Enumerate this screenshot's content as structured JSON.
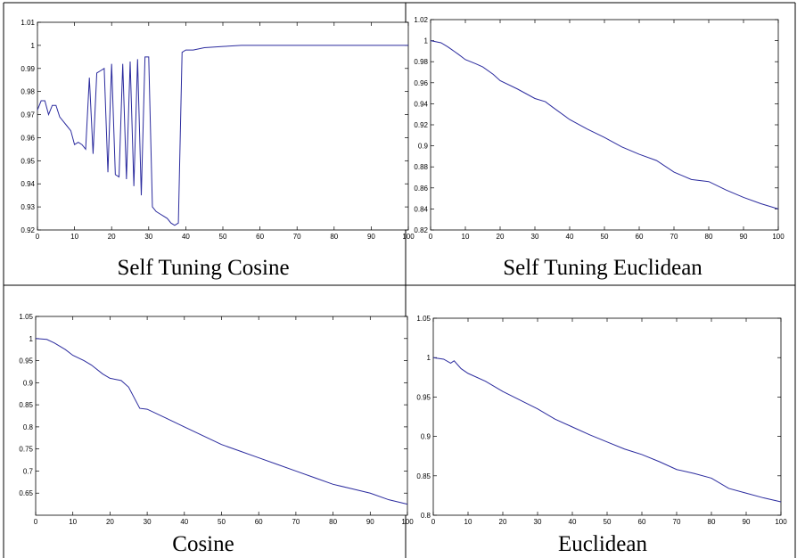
{
  "chart_data": [
    {
      "type": "line",
      "title": "Self Tuning Cosine",
      "color": "#2b2b9e",
      "x": [
        0,
        1,
        2,
        3,
        4,
        5,
        6,
        7,
        8,
        9,
        10,
        11,
        12,
        13,
        14,
        15,
        16,
        17,
        18,
        19,
        20,
        21,
        22,
        23,
        24,
        25,
        26,
        27,
        28,
        29,
        30,
        31,
        32,
        33,
        34,
        35,
        36,
        37,
        38,
        39,
        40,
        42,
        45,
        50,
        55,
        60,
        100
      ],
      "values": [
        0.972,
        0.976,
        0.976,
        0.97,
        0.974,
        0.974,
        0.969,
        0.967,
        0.965,
        0.963,
        0.957,
        0.958,
        0.957,
        0.955,
        0.986,
        0.953,
        0.988,
        0.989,
        0.99,
        0.945,
        0.992,
        0.944,
        0.943,
        0.992,
        0.942,
        0.993,
        0.939,
        0.994,
        0.935,
        0.995,
        0.995,
        0.93,
        0.928,
        0.927,
        0.926,
        0.925,
        0.923,
        0.922,
        0.923,
        0.997,
        0.998,
        0.998,
        0.999,
        0.9995,
        1,
        1,
        1
      ],
      "xlim": [
        0,
        100
      ],
      "xticks": [
        0,
        10,
        20,
        30,
        40,
        50,
        60,
        70,
        80,
        90,
        100
      ],
      "ylim": [
        0.92,
        1.01
      ],
      "yticks": [
        0.92,
        0.93,
        0.94,
        0.95,
        0.96,
        0.97,
        0.98,
        0.99,
        1,
        1.01
      ]
    },
    {
      "type": "line",
      "title": "Self Tuning Euclidean",
      "color": "#2b2b9e",
      "x": [
        0,
        3,
        5,
        8,
        10,
        13,
        15,
        18,
        20,
        25,
        30,
        33,
        35,
        40,
        45,
        50,
        55,
        60,
        65,
        70,
        75,
        80,
        85,
        90,
        95,
        100
      ],
      "values": [
        1.0,
        0.998,
        0.994,
        0.987,
        0.982,
        0.978,
        0.975,
        0.968,
        0.962,
        0.954,
        0.945,
        0.942,
        0.937,
        0.925,
        0.916,
        0.908,
        0.899,
        0.892,
        0.886,
        0.875,
        0.868,
        0.866,
        0.858,
        0.851,
        0.845,
        0.84
      ],
      "xlim": [
        0,
        100
      ],
      "xticks": [
        0,
        10,
        20,
        30,
        40,
        50,
        60,
        70,
        80,
        90,
        100
      ],
      "ylim": [
        0.82,
        1.02
      ],
      "yticks": [
        0.82,
        0.84,
        0.86,
        0.88,
        0.9,
        0.92,
        0.94,
        0.96,
        0.98,
        1,
        1.02
      ]
    },
    {
      "type": "line",
      "title": "Cosine",
      "color": "#2b2b9e",
      "x": [
        0,
        3,
        5,
        8,
        10,
        13,
        15,
        18,
        20,
        23,
        25,
        28,
        30,
        35,
        40,
        45,
        50,
        55,
        60,
        65,
        70,
        75,
        80,
        85,
        90,
        95,
        100
      ],
      "values": [
        1.0,
        0.998,
        0.99,
        0.975,
        0.962,
        0.95,
        0.94,
        0.92,
        0.91,
        0.905,
        0.89,
        0.842,
        0.84,
        0.82,
        0.8,
        0.78,
        0.76,
        0.745,
        0.73,
        0.715,
        0.7,
        0.685,
        0.67,
        0.66,
        0.65,
        0.635,
        0.625
      ],
      "xlim": [
        0,
        100
      ],
      "xticks": [
        0,
        10,
        20,
        30,
        40,
        50,
        60,
        70,
        80,
        90,
        100
      ],
      "ylim": [
        0.6,
        1.05
      ],
      "yticks": [
        0.65,
        0.7,
        0.75,
        0.8,
        0.85,
        0.9,
        0.95,
        1,
        1.05
      ]
    },
    {
      "type": "line",
      "title": "Euclidean",
      "color": "#2b2b9e",
      "x": [
        0,
        3,
        5,
        6,
        8,
        10,
        15,
        20,
        25,
        30,
        35,
        40,
        45,
        50,
        55,
        60,
        65,
        70,
        75,
        80,
        85,
        90,
        95,
        100
      ],
      "values": [
        1.0,
        0.998,
        0.993,
        0.996,
        0.986,
        0.98,
        0.97,
        0.957,
        0.946,
        0.935,
        0.922,
        0.912,
        0.902,
        0.893,
        0.884,
        0.877,
        0.868,
        0.858,
        0.853,
        0.847,
        0.834,
        0.828,
        0.822,
        0.817
      ],
      "xlim": [
        0,
        100
      ],
      "xticks": [
        0,
        10,
        20,
        30,
        40,
        50,
        60,
        70,
        80,
        90,
        100
      ],
      "ylim": [
        0.8,
        1.05
      ],
      "yticks": [
        0.8,
        0.85,
        0.9,
        0.95,
        1,
        1.05
      ]
    }
  ]
}
